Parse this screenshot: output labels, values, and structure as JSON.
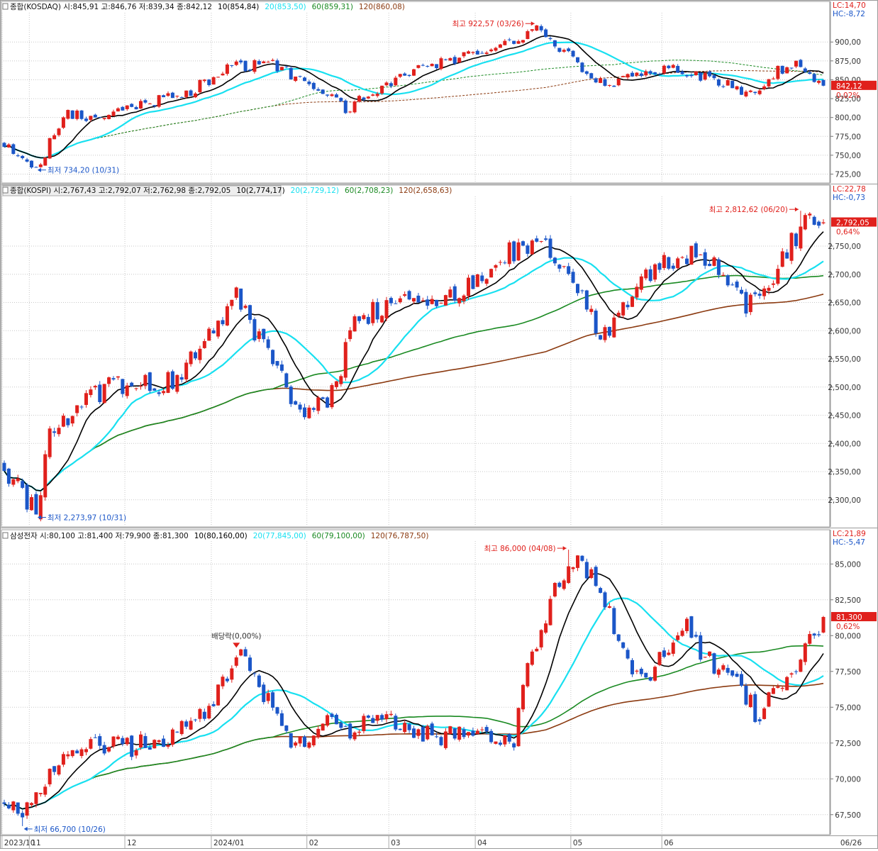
{
  "chart_data": [
    {
      "type": "candlestick",
      "panel": "kosdaq",
      "header": {
        "name": "종합(KOSDAQ)",
        "ohlc": "시:845,91 고:846,76 저:839,34 종:842,12",
        "ma10": "10(854,84)",
        "ma20": "20(853,50)",
        "ma60": "60(859,31)",
        "ma120": "120(860,08)"
      },
      "ylim": [
        717,
        935
      ],
      "yticks": [
        725,
        750,
        775,
        800,
        825,
        850,
        875,
        900
      ],
      "ytick_labels": [
        "725,00",
        "750,00",
        "775,00",
        "800,00",
        "825,00",
        "850,00",
        "875,00",
        "900,00"
      ],
      "lc": "LC:14,70",
      "hc": "HC:-8,72",
      "last_label": "842,12",
      "pct_label": "0,02%",
      "last_value": 842.12,
      "high": {
        "label": "최고 922,57 (03/26)",
        "value": 922.57,
        "x": 117
      },
      "low": {
        "label": "최저 734,20 (10/31)",
        "value": 734.2,
        "x": 7
      },
      "anchors": [
        [
          0,
          765
        ],
        [
          5,
          745
        ],
        [
          8,
          734
        ],
        [
          10,
          770
        ],
        [
          14,
          805
        ],
        [
          20,
          795
        ],
        [
          30,
          818
        ],
        [
          40,
          832
        ],
        [
          50,
          866
        ],
        [
          58,
          872
        ],
        [
          62,
          860
        ],
        [
          68,
          838
        ],
        [
          75,
          812
        ],
        [
          80,
          828
        ],
        [
          86,
          852
        ],
        [
          96,
          872
        ],
        [
          106,
          888
        ],
        [
          117,
          918
        ],
        [
          121,
          898
        ],
        [
          126,
          872
        ],
        [
          132,
          842
        ],
        [
          138,
          852
        ],
        [
          146,
          868
        ],
        [
          152,
          858
        ],
        [
          160,
          840
        ],
        [
          164,
          832
        ],
        [
          170,
          862
        ],
        [
          174,
          872
        ],
        [
          180,
          840
        ]
      ]
    },
    {
      "type": "candlestick",
      "panel": "kospi",
      "header": {
        "name": "종합(KOSPI)",
        "ohlc": "시:2,767,43 고:2,792,07 저:2,762,98 종:2,792,05",
        "ma10": "10(2,774,17)",
        "ma20": "20(2,729,12)",
        "ma60": "60(2,708,23)",
        "ma120": "120(2,658,63)"
      },
      "ylim": [
        2257,
        2833
      ],
      "yticks": [
        2300,
        2350,
        2400,
        2450,
        2500,
        2550,
        2600,
        2650,
        2700,
        2750
      ],
      "ytick_labels": [
        "2,300,00",
        "2,350,00",
        "2,400,00",
        "2,450,00",
        "2,500,00",
        "2,550,00",
        "2,600,00",
        "2,650,00",
        "2,700,00",
        "2,750,00"
      ],
      "lc": "LC:22,78",
      "hc": "HC:-0,73",
      "last_label": "2,792,05",
      "pct_label": "0,64%",
      "last_value": 2792.05,
      "high": {
        "label": "최고 2,812,62 (06/20)",
        "value": 2812.62,
        "x": 175
      },
      "low": {
        "label": "최저 2,273,97 (10/31)",
        "value": 2273.97,
        "x": 7
      },
      "anchors": [
        [
          0,
          2360
        ],
        [
          4,
          2310
        ],
        [
          7,
          2280
        ],
        [
          10,
          2420
        ],
        [
          14,
          2440
        ],
        [
          20,
          2490
        ],
        [
          28,
          2510
        ],
        [
          35,
          2500
        ],
        [
          40,
          2540
        ],
        [
          46,
          2600
        ],
        [
          51,
          2660
        ],
        [
          55,
          2590
        ],
        [
          60,
          2540
        ],
        [
          64,
          2470
        ],
        [
          70,
          2460
        ],
        [
          73,
          2500
        ],
        [
          76,
          2600
        ],
        [
          82,
          2640
        ],
        [
          88,
          2660
        ],
        [
          96,
          2650
        ],
        [
          104,
          2700
        ],
        [
          110,
          2735
        ],
        [
          117,
          2755
        ],
        [
          121,
          2735
        ],
        [
          125,
          2700
        ],
        [
          128,
          2630
        ],
        [
          132,
          2590
        ],
        [
          136,
          2640
        ],
        [
          142,
          2700
        ],
        [
          148,
          2735
        ],
        [
          152,
          2740
        ],
        [
          156,
          2715
        ],
        [
          160,
          2680
        ],
        [
          163,
          2640
        ],
        [
          168,
          2690
        ],
        [
          172,
          2740
        ],
        [
          176,
          2800
        ],
        [
          180,
          2785
        ]
      ]
    },
    {
      "type": "candlestick",
      "panel": "samsung",
      "header": {
        "name": "삼성전자",
        "ohlc": "시:80,100 고:81,400 저:79,900 종:81,300",
        "ma10": "10(80,160,00)",
        "ma20": "20(77,845,00)",
        "ma60": "60(79,100,00)",
        "ma120": "120(76,787,50)"
      },
      "ylim": [
        66300,
        86400
      ],
      "yticks": [
        67500,
        70000,
        72500,
        75000,
        77500,
        80000,
        82500,
        85000
      ],
      "ytick_labels": [
        "67,500",
        "70,000",
        "72,500",
        "75,000",
        "77,500",
        "80,000",
        "82,500",
        "85,000"
      ],
      "lc": "LC:21,89",
      "hc": "HC:-5,47",
      "last_label": "81,300",
      "pct_label": "0,62%",
      "last_value": 81300,
      "high": {
        "label": "최고 86,000 (04/08)",
        "value": 86000,
        "x": 124
      },
      "low": {
        "label": "최저 66,700 (10/26)",
        "value": 66700,
        "x": 4
      },
      "dividend": {
        "label": "배당락(0,00%)",
        "value": 79200,
        "x": 51
      },
      "anchors": [
        [
          0,
          68500
        ],
        [
          3,
          67500
        ],
        [
          6,
          68000
        ],
        [
          10,
          70500
        ],
        [
          15,
          71500
        ],
        [
          20,
          72500
        ],
        [
          28,
          72200
        ],
        [
          36,
          73000
        ],
        [
          44,
          74500
        ],
        [
          48,
          76500
        ],
        [
          52,
          78500
        ],
        [
          55,
          77000
        ],
        [
          58,
          75500
        ],
        [
          62,
          73000
        ],
        [
          66,
          72500
        ],
        [
          70,
          74000
        ],
        [
          76,
          73500
        ],
        [
          84,
          74200
        ],
        [
          90,
          73200
        ],
        [
          96,
          73000
        ],
        [
          100,
          73500
        ],
        [
          108,
          73000
        ],
        [
          112,
          72800
        ],
        [
          114,
          77000
        ],
        [
          118,
          80000
        ],
        [
          122,
          84000
        ],
        [
          126,
          85000
        ],
        [
          130,
          84000
        ],
        [
          134,
          80500
        ],
        [
          138,
          77500
        ],
        [
          142,
          77500
        ],
        [
          146,
          79500
        ],
        [
          150,
          80500
        ],
        [
          154,
          78500
        ],
        [
          158,
          77500
        ],
        [
          162,
          76500
        ],
        [
          166,
          74000
        ],
        [
          168,
          75500
        ],
        [
          172,
          76500
        ],
        [
          176,
          79000
        ],
        [
          180,
          81000
        ]
      ]
    }
  ],
  "xaxis": {
    "labels": [
      {
        "text": "2023/10",
        "x": 0
      },
      {
        "text": "11",
        "x": 6
      },
      {
        "text": "12",
        "x": 27
      },
      {
        "text": "2024/01",
        "x": 46
      },
      {
        "text": "02",
        "x": 67
      },
      {
        "text": "03",
        "x": 85
      },
      {
        "text": "04",
        "x": 104
      },
      {
        "text": "05",
        "x": 125
      },
      {
        "text": "06",
        "x": 145
      }
    ],
    "last_label": "06/26"
  },
  "colors": {
    "up": "#e0201c",
    "down": "#1b56c8",
    "ma10": "#000000",
    "ma20": "#18e0f0",
    "ma60": "#1a8a22",
    "ma120": "#8b3a10",
    "grid": "#c7c7c7",
    "label_red": "#e0201c",
    "label_blue": "#1b56c8"
  }
}
